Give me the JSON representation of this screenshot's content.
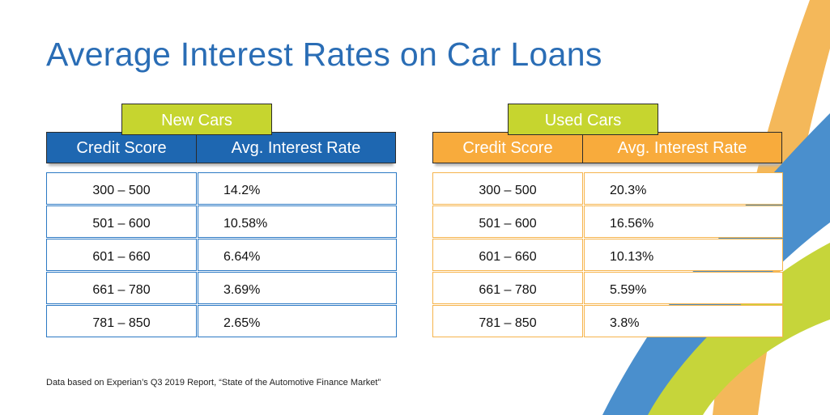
{
  "title": "Average Interest Rates on Car Loans",
  "colors": {
    "title": "#2a6db5",
    "new_header": "#1e67b1",
    "new_border": "#2c79c4",
    "used_header": "#f8ab3c",
    "used_border": "#f6b44c",
    "tab": "#c6d52f",
    "swoosh_orange": "#f4b85a",
    "swoosh_blue": "#4a8fcd",
    "swoosh_green": "#c6d53a"
  },
  "tables": {
    "new": {
      "tab_label": "New Cars",
      "col_credit": "Credit Score",
      "col_rate": "Avg. Interest Rate",
      "rows": [
        {
          "score": "300 – 500",
          "rate": "14.2%"
        },
        {
          "score": "501 – 600",
          "rate": "10.58%"
        },
        {
          "score": "601 – 660",
          "rate": "6.64%"
        },
        {
          "score": "661 – 780",
          "rate": "3.69%"
        },
        {
          "score": "781 – 850",
          "rate": "2.65%"
        }
      ]
    },
    "used": {
      "tab_label": "Used Cars",
      "col_credit": "Credit Score",
      "col_rate": "Avg. Interest Rate",
      "rows": [
        {
          "score": "300 – 500",
          "rate": "20.3%"
        },
        {
          "score": "501 – 600",
          "rate": "16.56%"
        },
        {
          "score": "601 – 660",
          "rate": "10.13%"
        },
        {
          "score": "661 – 780",
          "rate": "5.59%"
        },
        {
          "score": "781 – 850",
          "rate": "3.8%"
        }
      ]
    }
  },
  "footnote": "Data based on Experian’s Q3 2019 Report, “State of the Automotive Finance Market”"
}
